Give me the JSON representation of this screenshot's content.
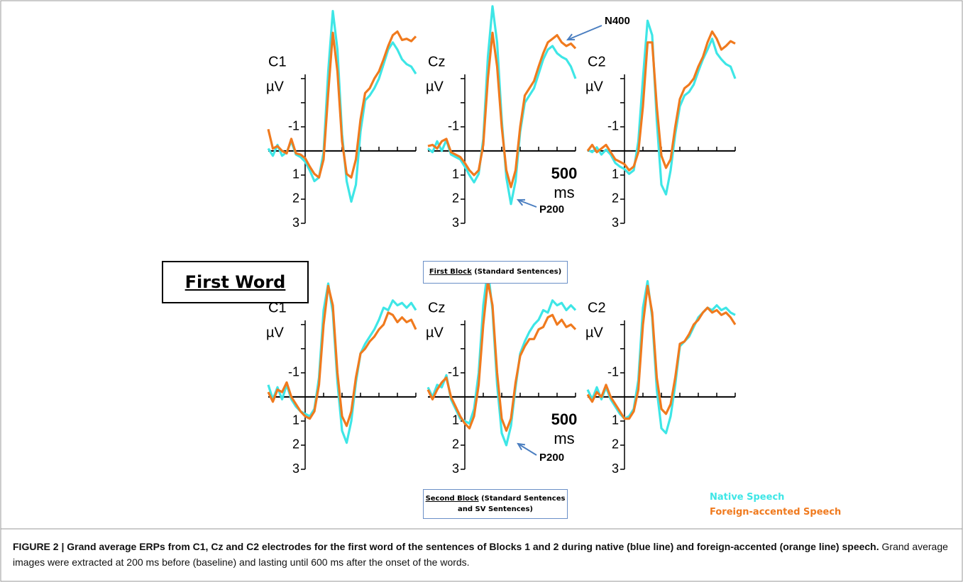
{
  "chart_data": [
    {
      "type": "line",
      "title": "C1",
      "ylabel": "µV",
      "xlim": [
        -200,
        600
      ],
      "ylim": [
        -6.2,
        3
      ],
      "y_inverted": true,
      "yticks": [
        -1,
        1,
        2,
        3
      ],
      "y_minor_ticks": [
        -2,
        -3
      ],
      "x_minor_ticks": [
        100,
        200,
        300,
        400,
        500,
        600
      ],
      "x": [
        -200,
        -175,
        -150,
        -125,
        -100,
        -75,
        -50,
        -25,
        0,
        25,
        50,
        75,
        100,
        125,
        150,
        175,
        200,
        225,
        250,
        275,
        300,
        325,
        350,
        375,
        400,
        425,
        450,
        475,
        500,
        525,
        550,
        575,
        600
      ],
      "series": [
        {
          "name": "Native Speech",
          "color": "#3ee6e6",
          "values": [
            -0.1,
            0.2,
            -0.25,
            0.2,
            0.05,
            -0.4,
            0.15,
            0.25,
            0.45,
            0.8,
            1.25,
            1.1,
            0.05,
            -3.3,
            -5.8,
            -4.2,
            -0.7,
            1.25,
            2.1,
            1.4,
            -0.8,
            -2.1,
            -2.3,
            -2.6,
            -3.0,
            -3.6,
            -4.2,
            -4.5,
            -4.2,
            -3.8,
            -3.6,
            -3.5,
            -3.2
          ]
        },
        {
          "name": "Foreign-accented Speech",
          "color": "#f07a1e",
          "values": [
            -0.9,
            -0.1,
            -0.2,
            0,
            0.1,
            -0.5,
            0.1,
            0.15,
            0.3,
            0.65,
            0.95,
            1.1,
            0.35,
            -2.4,
            -4.9,
            -3.3,
            -0.4,
            0.95,
            1.1,
            0.35,
            -1.3,
            -2.4,
            -2.6,
            -3.0,
            -3.3,
            -3.8,
            -4.35,
            -4.8,
            -4.95,
            -4.6,
            -4.65,
            -4.55,
            -4.75
          ]
        }
      ]
    },
    {
      "type": "line",
      "title": "Cz",
      "ylabel": "µV",
      "xlim": [
        -200,
        600
      ],
      "ylim": [
        -6.2,
        3
      ],
      "y_inverted": true,
      "yticks": [
        -1,
        1,
        2,
        3
      ],
      "y_minor_ticks": [
        -2,
        -3
      ],
      "x_minor_ticks": [
        100,
        200,
        300,
        400,
        500,
        600
      ],
      "scale_bar": {
        "label": "500",
        "unit": "ms"
      },
      "annotations": [
        {
          "text": "N400"
        },
        {
          "text": "P200"
        }
      ],
      "x": [
        -200,
        -175,
        -150,
        -125,
        -100,
        -75,
        -50,
        -25,
        0,
        25,
        50,
        75,
        100,
        125,
        150,
        175,
        200,
        225,
        250,
        275,
        300,
        325,
        350,
        375,
        400,
        425,
        450,
        475,
        500,
        525,
        550,
        575,
        600
      ],
      "series": [
        {
          "name": "Native Speech",
          "color": "#3ee6e6",
          "values": [
            -0.1,
            0.05,
            -0.4,
            0,
            -0.45,
            0.15,
            0.25,
            0.35,
            0.65,
            1.0,
            1.3,
            0.95,
            -0.5,
            -3.9,
            -6.0,
            -4.5,
            -1.3,
            1.1,
            2.2,
            1.25,
            -0.8,
            -2.0,
            -2.3,
            -2.6,
            -3.2,
            -3.8,
            -4.2,
            -4.35,
            -4.05,
            -3.9,
            -3.8,
            -3.5,
            -3.0
          ]
        },
        {
          "name": "Foreign-accented Speech",
          "color": "#f07a1e",
          "values": [
            -0.2,
            -0.25,
            -0.1,
            -0.4,
            -0.5,
            0.05,
            0.15,
            0.25,
            0.5,
            0.8,
            1.0,
            0.8,
            -0.25,
            -3.0,
            -4.9,
            -3.5,
            -1.0,
            0.8,
            1.5,
            0.8,
            -1.0,
            -2.3,
            -2.6,
            -2.9,
            -3.5,
            -4.05,
            -4.5,
            -4.65,
            -4.8,
            -4.5,
            -4.35,
            -4.45,
            -4.25
          ]
        }
      ]
    },
    {
      "type": "line",
      "title": "C2",
      "ylabel": "µV",
      "xlim": [
        -200,
        600
      ],
      "ylim": [
        -6.2,
        3
      ],
      "y_inverted": true,
      "yticks": [
        -1,
        1,
        2,
        3
      ],
      "y_minor_ticks": [
        -2,
        -3
      ],
      "x_minor_ticks": [
        100,
        200,
        300,
        400,
        500,
        600
      ],
      "x": [
        -200,
        -175,
        -150,
        -125,
        -100,
        -75,
        -50,
        -25,
        0,
        25,
        50,
        75,
        100,
        125,
        150,
        175,
        200,
        225,
        250,
        275,
        300,
        325,
        350,
        375,
        400,
        425,
        450,
        475,
        500,
        525,
        550,
        575,
        600
      ],
      "series": [
        {
          "name": "Native Speech",
          "color": "#3ee6e6",
          "values": [
            -0.05,
            0.05,
            -0.15,
            0.15,
            -0.05,
            0.15,
            0.5,
            0.65,
            0.75,
            0.95,
            0.8,
            -0.4,
            -3.0,
            -5.4,
            -4.8,
            -1.25,
            1.4,
            1.8,
            0.8,
            -0.7,
            -1.85,
            -2.3,
            -2.45,
            -2.75,
            -3.3,
            -3.8,
            -4.2,
            -4.65,
            -4.05,
            -3.8,
            -3.6,
            -3.5,
            -3.0
          ]
        },
        {
          "name": "Foreign-accented Speech",
          "color": "#f07a1e",
          "values": [
            0,
            -0.25,
            0.05,
            -0.1,
            -0.25,
            0.05,
            0.35,
            0.45,
            0.55,
            0.8,
            0.65,
            0.05,
            -1.85,
            -4.5,
            -4.5,
            -1.85,
            0.2,
            0.7,
            0.35,
            -1.0,
            -2.15,
            -2.6,
            -2.75,
            -3.0,
            -3.5,
            -3.9,
            -4.5,
            -4.95,
            -4.65,
            -4.2,
            -4.35,
            -4.55,
            -4.45
          ]
        }
      ]
    },
    {
      "type": "line",
      "title": "C1",
      "ylabel": "µV",
      "xlim": [
        -200,
        600
      ],
      "ylim": [
        -6.2,
        3
      ],
      "y_inverted": true,
      "yticks": [
        -1,
        1,
        2,
        3
      ],
      "y_minor_ticks": [
        -2,
        -3
      ],
      "x_minor_ticks": [
        100,
        200,
        300,
        400,
        500,
        600
      ],
      "x": [
        -200,
        -175,
        -150,
        -125,
        -100,
        -75,
        -50,
        -25,
        0,
        25,
        50,
        75,
        100,
        125,
        150,
        175,
        200,
        225,
        250,
        275,
        300,
        325,
        350,
        375,
        400,
        425,
        450,
        475,
        500,
        525,
        550,
        575,
        600
      ],
      "series": [
        {
          "name": "Native Speech",
          "color": "#3ee6e6",
          "values": [
            -0.5,
            0.1,
            -0.4,
            0.1,
            -0.5,
            0.1,
            0.4,
            0.6,
            0.7,
            0.8,
            0.5,
            -0.8,
            -3.6,
            -4.7,
            -3.5,
            -0.6,
            1.4,
            1.9,
            1.0,
            -0.6,
            -1.8,
            -2.2,
            -2.5,
            -2.8,
            -3.2,
            -3.7,
            -3.6,
            -4.0,
            -3.8,
            -3.9,
            -3.7,
            -3.9,
            -3.6
          ]
        },
        {
          "name": "Foreign-accented Speech",
          "color": "#f07a1e",
          "values": [
            -0.2,
            0.2,
            -0.3,
            -0.2,
            -0.6,
            0.0,
            0.3,
            0.6,
            0.8,
            0.9,
            0.6,
            -0.5,
            -3.0,
            -4.6,
            -3.8,
            -1.0,
            0.8,
            1.2,
            0.6,
            -0.8,
            -1.8,
            -2.0,
            -2.3,
            -2.5,
            -2.8,
            -3.0,
            -3.5,
            -3.4,
            -3.1,
            -3.3,
            -3.1,
            -3.2,
            -2.8
          ]
        }
      ]
    },
    {
      "type": "line",
      "title": "Cz",
      "ylabel": "µV",
      "xlim": [
        -200,
        600
      ],
      "ylim": [
        -6.2,
        3
      ],
      "y_inverted": true,
      "yticks": [
        -1,
        1,
        2,
        3
      ],
      "y_minor_ticks": [
        -2,
        -3
      ],
      "x_minor_ticks": [
        100,
        200,
        300,
        400,
        500,
        600
      ],
      "scale_bar": {
        "label": "500",
        "unit": "ms"
      },
      "annotations": [
        {
          "text": "P200"
        }
      ],
      "x": [
        -200,
        -175,
        -150,
        -125,
        -100,
        -75,
        -50,
        -25,
        0,
        25,
        50,
        75,
        100,
        125,
        150,
        175,
        200,
        225,
        250,
        275,
        300,
        325,
        350,
        375,
        400,
        425,
        450,
        475,
        500,
        525,
        550,
        575,
        600
      ],
      "series": [
        {
          "name": "Native Speech",
          "color": "#3ee6e6",
          "values": [
            -0.4,
            0.0,
            -0.5,
            -0.4,
            -0.9,
            0.1,
            0.5,
            0.9,
            1.0,
            1.1,
            0.5,
            -1.0,
            -3.8,
            -5.3,
            -3.6,
            -0.5,
            1.5,
            2.0,
            1.2,
            -0.4,
            -1.8,
            -2.3,
            -2.7,
            -3.0,
            -3.2,
            -3.6,
            -3.5,
            -4.0,
            -3.8,
            -3.9,
            -3.6,
            -3.8,
            -3.6
          ]
        },
        {
          "name": "Foreign-accented Speech",
          "color": "#f07a1e",
          "values": [
            -0.3,
            0.1,
            -0.3,
            -0.6,
            -0.8,
            0.0,
            0.4,
            0.8,
            1.1,
            1.3,
            0.8,
            -0.5,
            -3.0,
            -4.8,
            -3.8,
            -1.0,
            0.9,
            1.4,
            0.9,
            -0.6,
            -1.7,
            -2.1,
            -2.4,
            -2.4,
            -2.8,
            -2.9,
            -3.3,
            -3.4,
            -3.0,
            -3.2,
            -2.9,
            -3.0,
            -2.8
          ]
        }
      ]
    },
    {
      "type": "line",
      "title": "C2",
      "ylabel": "µV",
      "xlim": [
        -200,
        600
      ],
      "ylim": [
        -6.2,
        3
      ],
      "y_inverted": true,
      "yticks": [
        -1,
        1,
        2,
        3
      ],
      "y_minor_ticks": [
        -2,
        -3
      ],
      "x_minor_ticks": [
        100,
        200,
        300,
        400,
        500,
        600
      ],
      "x": [
        -200,
        -175,
        -150,
        -125,
        -100,
        -75,
        -50,
        -25,
        0,
        25,
        50,
        75,
        100,
        125,
        150,
        175,
        200,
        225,
        250,
        275,
        300,
        325,
        350,
        375,
        400,
        425,
        450,
        475,
        500,
        525,
        550,
        575,
        600
      ],
      "series": [
        {
          "name": "Native Speech",
          "color": "#3ee6e6",
          "values": [
            -0.3,
            0.1,
            -0.4,
            0.1,
            -0.4,
            0.1,
            0.4,
            0.7,
            0.9,
            0.8,
            0.5,
            -0.7,
            -3.7,
            -4.8,
            -3.3,
            -0.3,
            1.3,
            1.5,
            0.8,
            -0.5,
            -2.1,
            -2.3,
            -2.5,
            -2.9,
            -3.3,
            -3.5,
            -3.7,
            -3.6,
            -3.8,
            -3.6,
            -3.7,
            -3.5,
            -3.4
          ]
        },
        {
          "name": "Foreign-accented Speech",
          "color": "#f07a1e",
          "values": [
            -0.1,
            0.2,
            -0.2,
            0.0,
            -0.5,
            0.0,
            0.3,
            0.6,
            0.9,
            0.9,
            0.6,
            -0.3,
            -3.0,
            -4.6,
            -3.5,
            -0.8,
            0.5,
            0.7,
            0.3,
            -0.8,
            -2.2,
            -2.3,
            -2.6,
            -3.0,
            -3.2,
            -3.5,
            -3.7,
            -3.5,
            -3.6,
            -3.4,
            -3.5,
            -3.3,
            -3.0
          ]
        }
      ]
    }
  ],
  "label_box": "First Word",
  "blocks": [
    {
      "name": "First Block",
      "detail": " (Standard Sentences)"
    },
    {
      "name": "Second Block",
      "detail": " (Standard Sentences and SV Sentences)"
    }
  ],
  "caption": {
    "title": "FIGURE 2 | Grand average ERPs from C1, Cz and C2 electrodes for the first word of the sentences of Blocks 1 and 2 during native (blue line) and foreign-accented (orange line) speech.",
    "text": " Grand average images were extracted at 200 ms before (baseline) and lasting until 600 ms after the onset of the words."
  }
}
